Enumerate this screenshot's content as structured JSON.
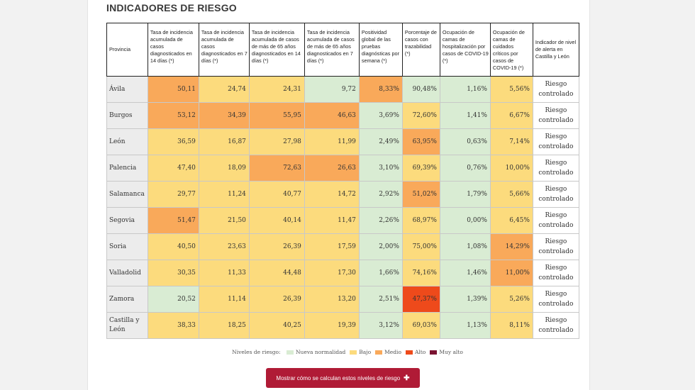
{
  "title": "INDICADORES DE RIESGO",
  "headers": [
    "Provincia",
    "Tasa de incidencia acumulada de casos diagnosticados en 14 días (*)",
    "Tasa de incidencia acumulada de casos diagnosticados en 7 días (*)",
    "Tasa de incidencia acumulada de casos de más de 65 años diagnosticados en 14 días (*)",
    "Tasa de incidencia acumulada de casos de más de 65 años diagnosticados en 7 días (*)",
    "Positividad global de las pruebas diagnósticas por semana (*)",
    "Porcentaje de casos con trazabilidad (*)",
    "Ocupación de camas de hospitalización por casos de COVID-19 (*)",
    "Ocupación de camas de cuidados críticos por casos de COVID-19 (*)",
    "Indicador de nivel de alerta en Castilla y León"
  ],
  "rows": [
    {
      "province": "Ávila",
      "values": [
        "50,11",
        "24,74",
        "24,31",
        "9,72",
        "8,33%",
        "90,48%",
        "1,16%",
        "5,56%"
      ],
      "levels": [
        "medio",
        "bajo",
        "bajo",
        "nn",
        "medio",
        "nn",
        "nn",
        "bajo"
      ],
      "status": "Riesgo controlado"
    },
    {
      "province": "Burgos",
      "values": [
        "53,12",
        "34,39",
        "55,95",
        "46,63",
        "3,69%",
        "72,60%",
        "1,41%",
        "6,67%"
      ],
      "levels": [
        "medio",
        "medio",
        "medio",
        "medio",
        "nn",
        "bajo",
        "nn",
        "bajo"
      ],
      "status": "Riesgo controlado"
    },
    {
      "province": "León",
      "values": [
        "36,59",
        "16,87",
        "27,98",
        "11,99",
        "2,49%",
        "63,95%",
        "0,63%",
        "7,14%"
      ],
      "levels": [
        "bajo",
        "bajo",
        "bajo",
        "bajo",
        "nn",
        "medio",
        "nn",
        "bajo"
      ],
      "status": "Riesgo controlado"
    },
    {
      "province": "Palencia",
      "values": [
        "47,40",
        "18,09",
        "72,63",
        "26,63",
        "3,10%",
        "69,39%",
        "0,76%",
        "10,00%"
      ],
      "levels": [
        "bajo",
        "bajo",
        "medio",
        "medio",
        "nn",
        "bajo",
        "nn",
        "bajo"
      ],
      "status": "Riesgo controlado"
    },
    {
      "province": "Salamanca",
      "values": [
        "29,77",
        "11,24",
        "40,77",
        "14,72",
        "2,92%",
        "51,02%",
        "1,79%",
        "5,66%"
      ],
      "levels": [
        "bajo",
        "bajo",
        "bajo",
        "bajo",
        "nn",
        "medio",
        "nn",
        "bajo"
      ],
      "status": "Riesgo controlado"
    },
    {
      "province": "Segovia",
      "values": [
        "51,47",
        "21,50",
        "40,14",
        "11,47",
        "2,26%",
        "68,97%",
        "0,00%",
        "6,45%"
      ],
      "levels": [
        "medio",
        "bajo",
        "bajo",
        "bajo",
        "nn",
        "bajo",
        "nn",
        "bajo"
      ],
      "status": "Riesgo controlado"
    },
    {
      "province": "Soria",
      "values": [
        "40,50",
        "23,63",
        "26,39",
        "17,59",
        "2,00%",
        "75,00%",
        "1,08%",
        "14,29%"
      ],
      "levels": [
        "bajo",
        "bajo",
        "bajo",
        "bajo",
        "nn",
        "bajo",
        "nn",
        "medio"
      ],
      "status": "Riesgo controlado"
    },
    {
      "province": "Valladolid",
      "values": [
        "30,35",
        "11,33",
        "44,48",
        "17,30",
        "1,66%",
        "74,16%",
        "1,46%",
        "11,00%"
      ],
      "levels": [
        "bajo",
        "bajo",
        "bajo",
        "bajo",
        "nn",
        "bajo",
        "nn",
        "medio"
      ],
      "status": "Riesgo controlado"
    },
    {
      "province": "Zamora",
      "values": [
        "20,52",
        "11,14",
        "26,39",
        "13,20",
        "2,51%",
        "47,37%",
        "1,39%",
        "5,26%"
      ],
      "levels": [
        "nn",
        "bajo",
        "bajo",
        "bajo",
        "nn",
        "alto",
        "nn",
        "bajo"
      ],
      "status": "Riesgo controlado"
    },
    {
      "province": "Castilla y León",
      "values": [
        "38,33",
        "18,25",
        "40,25",
        "19,39",
        "3,12%",
        "69,03%",
        "1,13%",
        "8,11%"
      ],
      "levels": [
        "bajo",
        "bajo",
        "bajo",
        "bajo",
        "nn",
        "bajo",
        "nn",
        "bajo"
      ],
      "status": "Riesgo controlado"
    }
  ],
  "legend": {
    "label": "Niveles de riesgo:",
    "items": [
      {
        "key": "nn",
        "label": "Nueva normalidad",
        "color": "#d9ecd3"
      },
      {
        "key": "bajo",
        "label": "Bajo",
        "color": "#fcdb7d"
      },
      {
        "key": "medio",
        "label": "Medio",
        "color": "#f9a95a"
      },
      {
        "key": "alto",
        "label": "Alto",
        "color": "#ee4a1b"
      },
      {
        "key": "muyalto",
        "label": "Muy alto",
        "color": "#7a1331"
      }
    ]
  },
  "button": {
    "label": "Mostrar cómo se calculan estos niveles de riesgo",
    "icon": "plus-icon"
  }
}
